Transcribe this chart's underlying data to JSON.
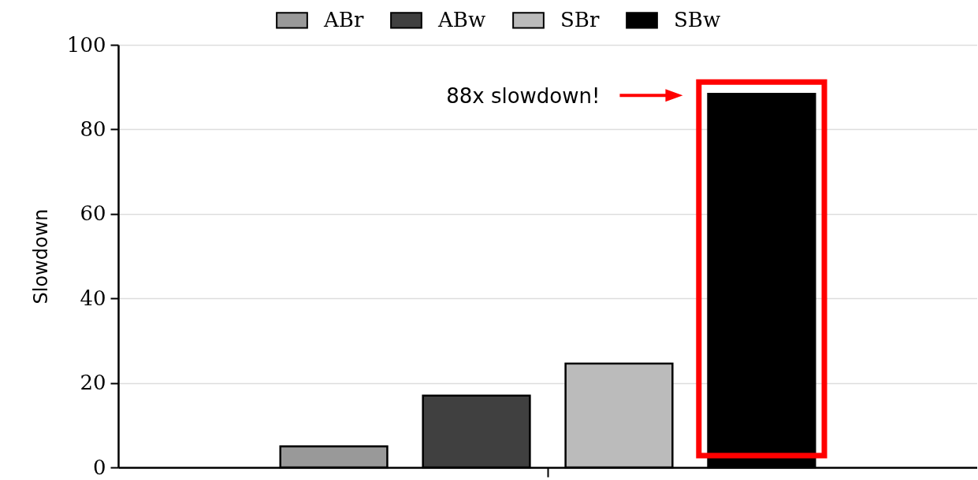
{
  "chart_data": {
    "type": "bar",
    "ylabel": "Slowdown",
    "categories": [
      null
    ],
    "series": [
      {
        "name": "ABr",
        "color": "#999999",
        "values": [
          5
        ]
      },
      {
        "name": "ABw",
        "color": "#404040",
        "values": [
          17
        ]
      },
      {
        "name": "SBr",
        "color": "#bbbbbb",
        "values": [
          24.6
        ]
      },
      {
        "name": "SBw",
        "color": "#000000",
        "values": [
          88.4
        ]
      }
    ],
    "ylim": [
      0,
      100
    ],
    "yticks": [
      0,
      20,
      40,
      60,
      80,
      100
    ],
    "grid": "y",
    "legend": "top",
    "tick_labels": "y",
    "annotations": [
      "88x slowdown!"
    ]
  }
}
